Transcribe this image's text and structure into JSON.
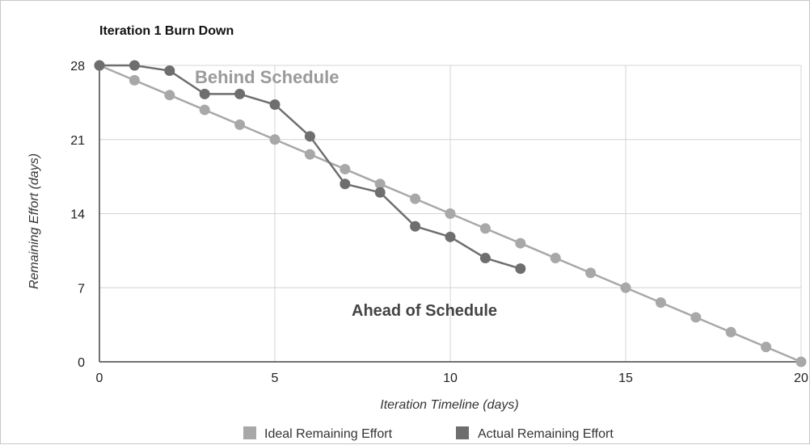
{
  "chart_data": {
    "type": "line",
    "title": "Iteration 1 Burn Down",
    "xlabel": "Iteration Timeline (days)",
    "ylabel": "Remaining Effort (days)",
    "xlim": [
      0,
      20
    ],
    "ylim": [
      0,
      28
    ],
    "xticks": [
      "0",
      "5",
      "10",
      "15",
      "20"
    ],
    "yticks": [
      "0",
      "7",
      "14",
      "21",
      "28"
    ],
    "x_tick_values": [
      0,
      5,
      10,
      15,
      20
    ],
    "y_tick_values": [
      0,
      7,
      14,
      21,
      28
    ],
    "grid": true,
    "legend_position": "bottom",
    "series": [
      {
        "name": "Ideal Remaining Effort",
        "color": "#a8a8a8",
        "x": [
          0,
          1,
          2,
          3,
          4,
          5,
          6,
          7,
          8,
          9,
          10,
          11,
          12,
          13,
          14,
          15,
          16,
          17,
          18,
          19,
          20
        ],
        "values": [
          28,
          26.6,
          25.2,
          23.8,
          22.4,
          21,
          19.6,
          18.2,
          16.8,
          15.4,
          14,
          12.6,
          11.2,
          9.8,
          8.4,
          7,
          5.6,
          4.2,
          2.8,
          1.4,
          0
        ]
      },
      {
        "name": "Actual Remaining Effort",
        "color": "#6e6e6e",
        "x": [
          0,
          1,
          2,
          3,
          4,
          5,
          6,
          7,
          8,
          9,
          10,
          11,
          12
        ],
        "values": [
          28,
          28,
          27.5,
          25.3,
          25.3,
          24.3,
          21.3,
          16.8,
          16,
          12.8,
          11.8,
          9.8,
          8.8
        ]
      }
    ],
    "annotations": [
      "Behind Schedule",
      "Ahead of Schedule"
    ]
  }
}
